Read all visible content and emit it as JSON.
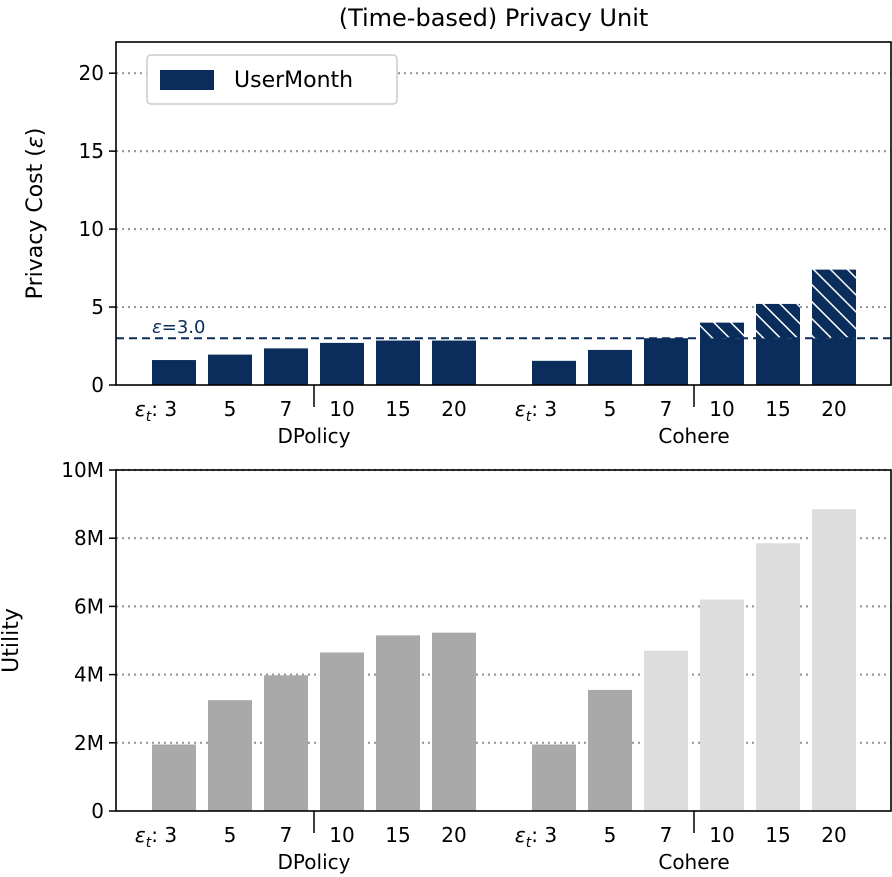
{
  "colors": {
    "navy": "#0b2d5b",
    "dp_gray": "#a9a9a9",
    "light_gray": "#dddddd",
    "grid": "#999999"
  },
  "chart_data": [
    {
      "type": "bar",
      "title": "(Time-based) Privacy Unit",
      "ylabel": "Privacy Cost (ε)",
      "ylim": [
        0,
        22
      ],
      "yticks": [
        0,
        5,
        10,
        15,
        20
      ],
      "ytick_labels": [
        "0",
        "5",
        "10",
        "15",
        "20"
      ],
      "grid": "horizontal dotted",
      "legend": {
        "placement": "top-left",
        "entries": [
          "UserMonth"
        ]
      },
      "reference_line": {
        "y": 3.0,
        "label": "ε=3.0",
        "style": "dashed"
      },
      "hatch_note": "hatched portion above ε=3.0 on Cohere bars",
      "groups": [
        {
          "name": "DPolicy",
          "tick_prefix": "εt: ",
          "categories": [
            "3",
            "5",
            "7",
            "10",
            "15",
            "20"
          ],
          "values": [
            1.6,
            1.95,
            2.35,
            2.7,
            2.85,
            2.85
          ],
          "hatched_above": []
        },
        {
          "name": "Cohere",
          "tick_prefix": "εt: ",
          "categories": [
            "3",
            "5",
            "7",
            "10",
            "15",
            "20"
          ],
          "values": [
            1.55,
            2.25,
            3.0,
            4.0,
            5.2,
            7.4
          ],
          "hatched_above": [
            3.0,
            3.0,
            3.0
          ]
        }
      ]
    },
    {
      "type": "bar",
      "ylabel": "Utility",
      "ylim": [
        0,
        10000000
      ],
      "yticks": [
        0,
        2000000,
        4000000,
        6000000,
        8000000,
        10000000
      ],
      "ytick_labels": [
        "0",
        "2M",
        "4M",
        "6M",
        "8M",
        "10M"
      ],
      "grid": "horizontal dotted",
      "groups": [
        {
          "name": "DPolicy",
          "tick_prefix": "εt: ",
          "categories": [
            "3",
            "5",
            "7",
            "10",
            "15",
            "20"
          ],
          "values": [
            1950000,
            3250000,
            3980000,
            4650000,
            5150000,
            5230000
          ],
          "shade": [
            "dark",
            "dark",
            "dark",
            "dark",
            "dark",
            "dark"
          ]
        },
        {
          "name": "Cohere",
          "tick_prefix": "εt: ",
          "categories": [
            "3",
            "5",
            "7",
            "10",
            "15",
            "20"
          ],
          "values": [
            1950000,
            3550000,
            4700000,
            6200000,
            7850000,
            8850000
          ],
          "shade": [
            "dark",
            "dark",
            "light",
            "light",
            "light",
            "light"
          ]
        }
      ]
    }
  ]
}
